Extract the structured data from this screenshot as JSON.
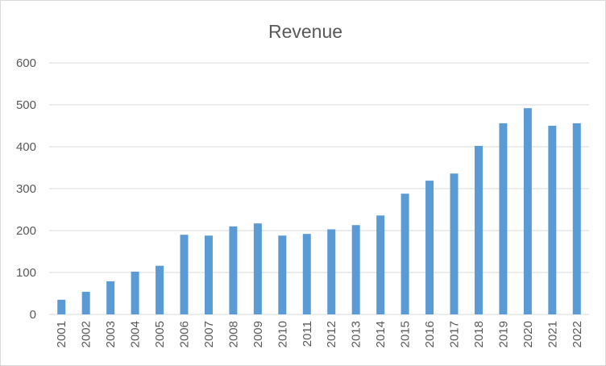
{
  "chart_data": {
    "type": "bar",
    "title": "Revenue",
    "xlabel": "",
    "ylabel": "",
    "ylim": [
      0,
      600
    ],
    "yticks": [
      0,
      100,
      200,
      300,
      400,
      500,
      600
    ],
    "grid": true,
    "legend": "none",
    "bar_color": "#5b9bd5",
    "categories": [
      "2001",
      "2002",
      "2003",
      "2004",
      "2005",
      "2006",
      "2007",
      "2008",
      "2009",
      "2010",
      "2011",
      "2012",
      "2013",
      "2014",
      "2015",
      "2016",
      "2017",
      "2018",
      "2019",
      "2020",
      "2021",
      "2022"
    ],
    "values": [
      35,
      54,
      79,
      102,
      116,
      190,
      188,
      210,
      217,
      188,
      192,
      203,
      213,
      236,
      288,
      319,
      336,
      402,
      456,
      492,
      450,
      456
    ]
  }
}
